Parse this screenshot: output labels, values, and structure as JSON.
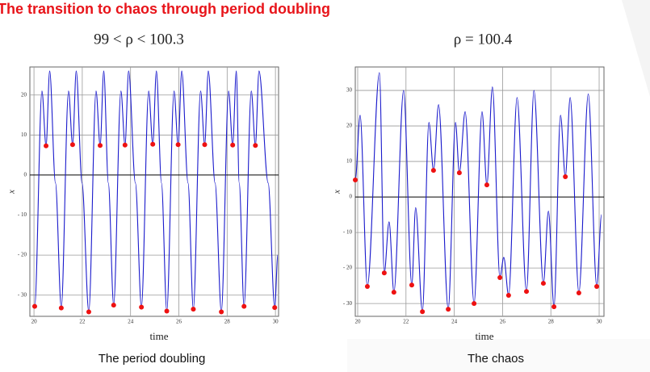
{
  "title": "The transition to chaos through period doubling",
  "chart_data": [
    {
      "type": "line",
      "title": "99 < ρ < 100.3",
      "caption": "The period doubling",
      "xlabel": "time",
      "ylabel": "x",
      "xlim": [
        19.83,
        30.13
      ],
      "ylim": [
        -35.3,
        27
      ],
      "xticks": [
        20,
        22,
        24,
        26,
        28,
        30
      ],
      "yticks": [
        {
          "value": -30,
          "label": "- 30"
        },
        {
          "value": -20,
          "label": "- 20"
        },
        {
          "value": -10,
          "label": "- 10"
        },
        0,
        10,
        20
      ],
      "grid": true,
      "series": [
        {
          "style": "line",
          "color": "#1a1acc",
          "x": [
            20.03,
            20.33,
            20.5,
            20.65,
            20.89,
            21.13,
            21.43,
            21.6,
            21.75,
            21.99,
            22.27,
            22.57,
            22.74,
            22.89,
            23.08,
            23.3,
            23.6,
            23.77,
            23.92,
            24.2,
            24.45,
            24.75,
            24.92,
            25.07,
            25.28,
            25.5,
            25.8,
            25.97,
            26.12,
            26.38,
            26.6,
            26.9,
            27.07,
            27.22,
            27.5,
            27.76,
            28.06,
            28.23,
            28.38,
            28.5,
            28.7,
            29.0,
            29.17,
            29.32,
            29.7,
            29.97,
            30.1
          ],
          "values": [
            -32.8,
            21,
            7.3,
            26,
            -2,
            -33.2,
            21,
            7.6,
            26,
            -2,
            -34.2,
            21,
            7.4,
            26,
            -2,
            -32.5,
            21,
            7.5,
            26,
            -2,
            -33,
            21,
            7.7,
            26,
            -2,
            -34,
            21,
            7.6,
            26,
            -2,
            -33.5,
            21,
            7.6,
            26,
            -2,
            -34.2,
            21,
            7.5,
            26,
            -2,
            -32.8,
            21,
            7.4,
            26,
            -2,
            -33.1,
            -20
          ]
        },
        {
          "style": "markers",
          "color": "#ee1111",
          "x": [
            20.03,
            20.5,
            21.13,
            21.6,
            22.27,
            22.74,
            23.3,
            23.77,
            24.45,
            24.92,
            25.5,
            25.97,
            26.6,
            27.07,
            27.76,
            28.23,
            28.7,
            29.17,
            29.97
          ],
          "values": [
            -32.8,
            7.3,
            -33.2,
            7.6,
            -34.2,
            7.4,
            -32.5,
            7.5,
            -33,
            7.7,
            -34,
            7.6,
            -33.5,
            7.6,
            -34.2,
            7.5,
            -32.8,
            7.4,
            -33.1
          ]
        }
      ]
    },
    {
      "type": "line",
      "title": "ρ = 100.4",
      "caption": "The chaos",
      "xlabel": "time",
      "ylabel": "x",
      "xlim": [
        19.9,
        30.2
      ],
      "ylim": [
        -33.6,
        36.6
      ],
      "xticks": [
        20,
        22,
        24,
        26,
        28,
        30
      ],
      "yticks": [
        {
          "value": -30,
          "label": "- 30"
        },
        {
          "value": -20,
          "label": "- 20"
        },
        {
          "value": -10,
          "label": "- 10"
        },
        0,
        10,
        20,
        30
      ],
      "grid": true,
      "series": [
        {
          "style": "line",
          "color": "#1a1acc",
          "x": [
            19.9,
            20.1,
            20.4,
            20.9,
            21.1,
            21.3,
            21.5,
            21.9,
            22.24,
            22.4,
            22.68,
            22.95,
            23.14,
            23.35,
            23.75,
            24.05,
            24.21,
            24.45,
            24.82,
            25.15,
            25.35,
            25.58,
            25.89,
            26.05,
            26.25,
            26.6,
            26.99,
            27.3,
            27.69,
            27.9,
            28.13,
            28.4,
            28.6,
            28.8,
            29.16,
            29.55,
            29.9,
            30.1
          ],
          "values": [
            4.8,
            23,
            -25.2,
            35,
            -21.4,
            -7,
            -26.8,
            30,
            -24.8,
            -3,
            -32.3,
            21,
            7.5,
            26,
            -31.6,
            21,
            6.8,
            24,
            -30,
            24,
            3.4,
            31,
            -22.7,
            -17,
            -27.7,
            28,
            -26.6,
            30,
            -24.3,
            -4,
            -30.9,
            23,
            5.7,
            28,
            -27,
            29,
            -25.2,
            -5
          ]
        },
        {
          "style": "markers",
          "color": "#ee1111",
          "x": [
            19.9,
            20.4,
            21.1,
            21.5,
            22.24,
            22.68,
            23.14,
            23.75,
            24.21,
            24.82,
            25.35,
            25.89,
            26.25,
            26.99,
            27.69,
            28.13,
            28.6,
            29.16,
            29.9
          ],
          "values": [
            4.8,
            -25.2,
            -21.4,
            -26.8,
            -24.8,
            -32.3,
            7.5,
            -31.6,
            6.8,
            -30,
            3.4,
            -22.7,
            -27.7,
            -26.6,
            -24.3,
            -30.9,
            5.7,
            -27,
            -25.2
          ]
        }
      ]
    }
  ]
}
